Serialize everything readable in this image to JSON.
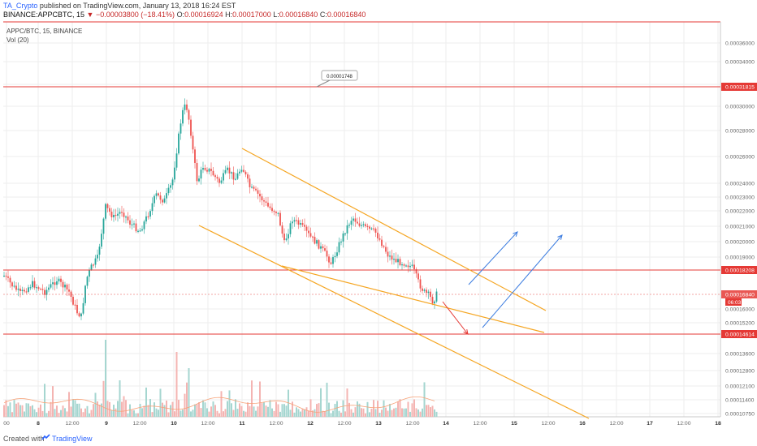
{
  "header": {
    "author": "TA_Crypto",
    "published_text": " published on TradingView.com, January 13, 2018 16:24 EST",
    "symbol": "BINANCE:APPCBTC, 15",
    "change": "▼ −0.00003800 (−18.41%)",
    "o_label": "O:",
    "o_value": "0.00016924",
    "h_label": "H:",
    "h_value": "0.00017000",
    "l_label": "L:",
    "l_value": "0.00016840",
    "c_label": "C:",
    "c_value": "0.00016840"
  },
  "legend": {
    "pair": "APPC/BTC, 15, BINANCE",
    "volume": "Vol (20)"
  },
  "footer": {
    "created_with": "Created with",
    "brand": "TradingView"
  },
  "colors": {
    "up": "#26a69a",
    "down": "#ef5350",
    "level": "#e53935",
    "trend": "#f5a623",
    "arrow_up": "#3d7de0",
    "arrow_down": "#e53935",
    "grid": "#eeeeee"
  },
  "chart_data": {
    "type": "candlestick",
    "y_axis": {
      "side": "right",
      "range": [
        0.0001075,
        0.0004
      ],
      "tick_labels": [
        "0.00036000",
        "0.00034000",
        "0.00032000",
        "0.00030000",
        "0.00028000",
        "0.00026000",
        "0.00024000",
        "0.00023000",
        "0.00022000",
        "0.00021000",
        "0.00020000",
        "0.00019000",
        "0.00016000",
        "0.00015200",
        "0.00013600",
        "0.00012800",
        "0.00012100",
        "0.00011400",
        "0.00010750"
      ]
    },
    "x_axis": {
      "tick_labels": [
        "00",
        "8",
        "12:00",
        "9",
        "12:00",
        "10",
        "12:00",
        "11",
        "12:00",
        "12",
        "12:00",
        "13",
        "12:00",
        "14",
        "12:00",
        "15",
        "12:00",
        "16",
        "12:00",
        "17",
        "12:00",
        "18"
      ]
    },
    "price_levels": [
      {
        "label": "0.00031815",
        "highlighted": true
      },
      {
        "label": "0.00018208",
        "highlighted": true
      },
      {
        "label": "0.00016840",
        "highlighted": true,
        "note": "06:03"
      },
      {
        "label": "0.00014614",
        "highlighted": true
      }
    ],
    "annotation": {
      "text": "0.00001748"
    },
    "trend_channel": "descending (orange)",
    "projection_arrows": [
      "up",
      "up",
      "down"
    ],
    "volume_legend": "Vol (20)"
  }
}
